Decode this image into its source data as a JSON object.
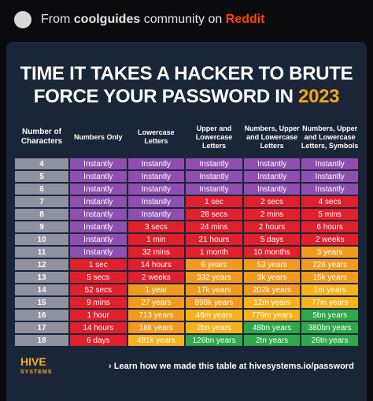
{
  "header": {
    "prefix": "From",
    "community": "coolguides",
    "middle": "community on",
    "site": "Reddit"
  },
  "title": {
    "line1": "TIME IT TAKES A HACKER TO BRUTE",
    "line2": "FORCE YOUR PASSWORD IN",
    "year": "2023"
  },
  "table": {
    "columns": [
      "Number of Characters",
      "Numbers Only",
      "Lowercase Letters",
      "Upper and Lowercase Letters",
      "Numbers, Upper and Lowercase Letters",
      "Numbers, Upper and Lowercase Letters, Symbols"
    ],
    "rows": [
      {
        "label": "4",
        "cells": [
          "Instantly",
          "Instantly",
          "Instantly",
          "Instantly",
          "Instantly"
        ],
        "colors": [
          "#8e4fb0",
          "#8e4fb0",
          "#8e4fb0",
          "#8e4fb0",
          "#8e4fb0"
        ]
      },
      {
        "label": "5",
        "cells": [
          "Instantly",
          "Instantly",
          "Instantly",
          "Instantly",
          "Instantly"
        ],
        "colors": [
          "#8e4fb0",
          "#8e4fb0",
          "#8e4fb0",
          "#8e4fb0",
          "#8e4fb0"
        ]
      },
      {
        "label": "6",
        "cells": [
          "Instantly",
          "Instantly",
          "Instantly",
          "Instantly",
          "Instantly"
        ],
        "colors": [
          "#8e4fb0",
          "#8e4fb0",
          "#8e4fb0",
          "#8e4fb0",
          "#8e4fb0"
        ]
      },
      {
        "label": "7",
        "cells": [
          "Instantly",
          "Instantly",
          "1 sec",
          "2 secs",
          "4 secs"
        ],
        "colors": [
          "#8e4fb0",
          "#8e4fb0",
          "#e0202c",
          "#e0202c",
          "#e0202c"
        ]
      },
      {
        "label": "8",
        "cells": [
          "Instantly",
          "Instantly",
          "28 secs",
          "2 mins",
          "5 mins"
        ],
        "colors": [
          "#8e4fb0",
          "#8e4fb0",
          "#e0202c",
          "#e0202c",
          "#e0202c"
        ]
      },
      {
        "label": "9",
        "cells": [
          "Instantly",
          "3 secs",
          "24 mins",
          "2 hours",
          "6 hours"
        ],
        "colors": [
          "#8e4fb0",
          "#e0202c",
          "#e0202c",
          "#e0202c",
          "#e0202c"
        ]
      },
      {
        "label": "10",
        "cells": [
          "Instantly",
          "1 min",
          "21 hours",
          "5 days",
          "2 weeks"
        ],
        "colors": [
          "#8e4fb0",
          "#e0202c",
          "#e0202c",
          "#e0202c",
          "#e0202c"
        ]
      },
      {
        "label": "11",
        "cells": [
          "Instantly",
          "32 mins",
          "1 month",
          "10 months",
          "3 years"
        ],
        "colors": [
          "#8e4fb0",
          "#e0202c",
          "#e0202c",
          "#e0202c",
          "#f29a1f"
        ]
      },
      {
        "label": "12",
        "cells": [
          "1 sec",
          "14 hours",
          "6 years",
          "53 years",
          "226 years"
        ],
        "colors": [
          "#e0202c",
          "#e0202c",
          "#f29a1f",
          "#f29a1f",
          "#f29a1f"
        ]
      },
      {
        "label": "13",
        "cells": [
          "5 secs",
          "2 weeks",
          "332 years",
          "3k years",
          "15k years"
        ],
        "colors": [
          "#e0202c",
          "#e0202c",
          "#f29a1f",
          "#f29a1f",
          "#f29a1f"
        ]
      },
      {
        "label": "14",
        "cells": [
          "52 secs",
          "1 year",
          "17k years",
          "202k years",
          "1m years"
        ],
        "colors": [
          "#e0202c",
          "#f29a1f",
          "#f29a1f",
          "#f29a1f",
          "#f5b21c"
        ]
      },
      {
        "label": "15",
        "cells": [
          "9 mins",
          "27 years",
          "898k years",
          "12m years",
          "77m years"
        ],
        "colors": [
          "#e0202c",
          "#f29a1f",
          "#f29a1f",
          "#f5b21c",
          "#f5b21c"
        ]
      },
      {
        "label": "16",
        "cells": [
          "1 hour",
          "713 years",
          "46m years",
          "779m years",
          "5bn years"
        ],
        "colors": [
          "#e0202c",
          "#f29a1f",
          "#f5b21c",
          "#f5b21c",
          "#2ea84a"
        ]
      },
      {
        "label": "17",
        "cells": [
          "14 hours",
          "18k years",
          "2bn years",
          "48bn years",
          "380bn years"
        ],
        "colors": [
          "#e0202c",
          "#f29a1f",
          "#f5b21c",
          "#2ea84a",
          "#2ea84a"
        ]
      },
      {
        "label": "18",
        "cells": [
          "6 days",
          "481k years",
          "126bn years",
          "2tn years",
          "26tn years"
        ],
        "colors": [
          "#e0202c",
          "#f5b21c",
          "#2ea84a",
          "#2ea84a",
          "#2ea84a"
        ]
      }
    ]
  },
  "footer": {
    "logo": "HIVE",
    "logo_sub": "SYSTEMS",
    "link_text": "Learn how we made this table at",
    "link_url": "hivesystems.io/password"
  }
}
